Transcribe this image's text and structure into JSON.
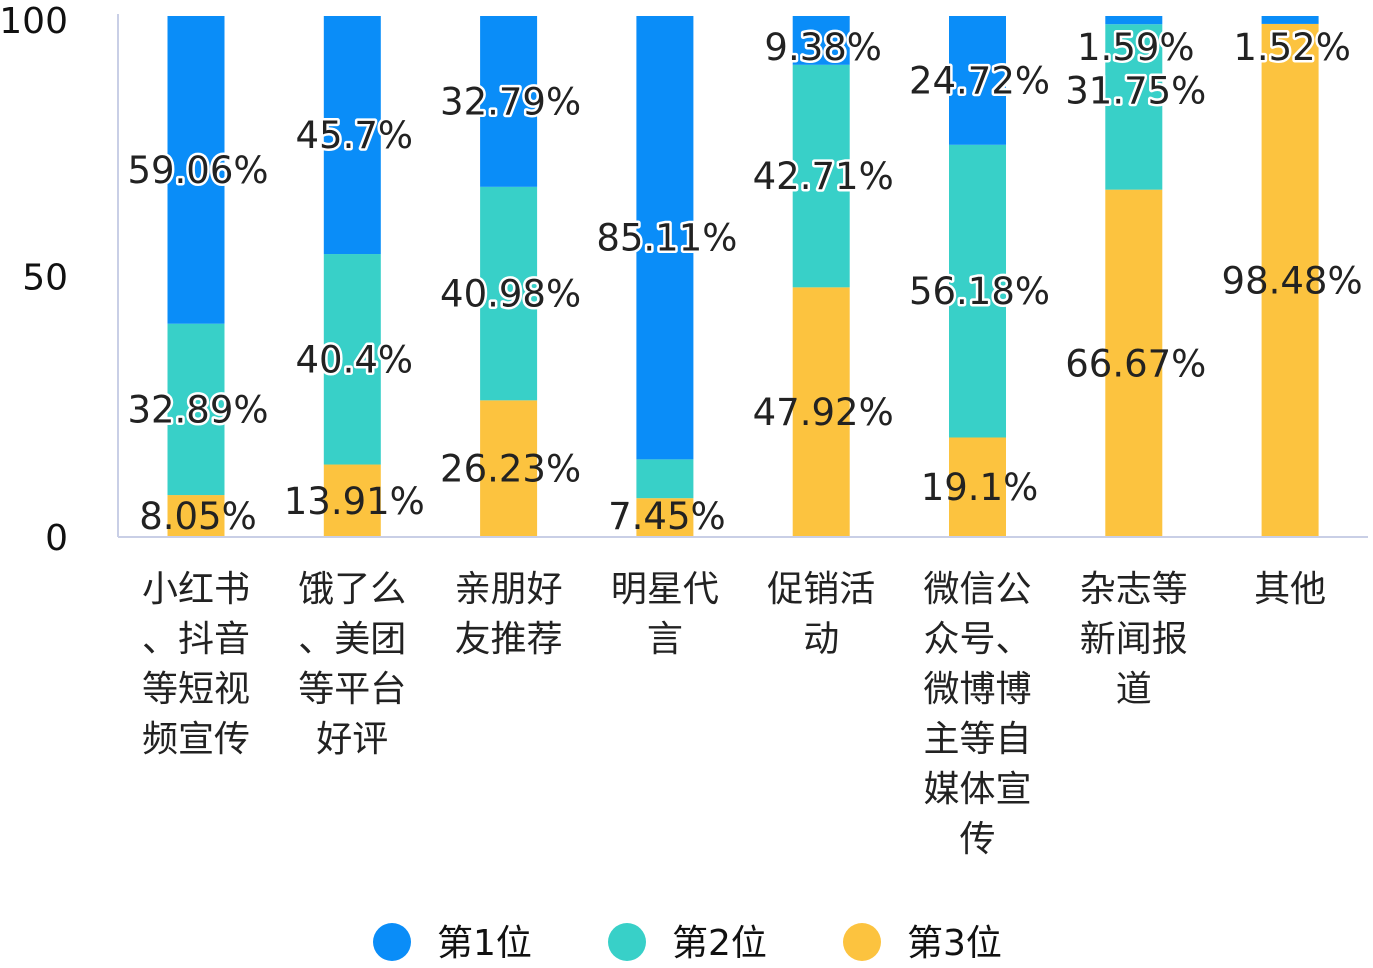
{
  "chart_data": {
    "type": "bar",
    "stacked": true,
    "ylim": [
      0,
      100
    ],
    "yticks": [
      "0",
      "50",
      "100"
    ],
    "legend_position": "bottom",
    "categories": [
      [
        "小红书",
        "、抖音",
        "等短视",
        "频宣传"
      ],
      [
        "饿了么",
        "、美团",
        "等平台",
        "好评"
      ],
      [
        "亲朋好",
        "友推荐"
      ],
      [
        "明星代",
        "言"
      ],
      [
        "促销活",
        "动"
      ],
      [
        "微信公",
        "众号、",
        "微博博",
        "主等自",
        "媒体宣",
        "传"
      ],
      [
        "杂志等",
        "新闻报",
        "道"
      ],
      [
        "其他"
      ]
    ],
    "series": [
      {
        "name": "第3位",
        "color": "#FCC33F",
        "values": [
          8.05,
          13.91,
          26.23,
          7.45,
          47.92,
          19.1,
          66.67,
          98.48
        ],
        "labels": [
          "8.05%",
          "13.91%",
          "26.23%",
          "7.45%",
          "47.92%",
          "19.1%",
          "66.67%",
          "98.48%"
        ]
      },
      {
        "name": "第2位",
        "color": "#38D0C8",
        "values": [
          32.89,
          40.4,
          40.98,
          7.45,
          42.71,
          56.18,
          31.75,
          0
        ],
        "labels": [
          "32.89%",
          "40.4%",
          "40.98%",
          "",
          "42.71%",
          "56.18%",
          "31.75%",
          ""
        ]
      },
      {
        "name": "第1位",
        "color": "#0A8DF8",
        "values": [
          59.06,
          45.7,
          32.79,
          85.11,
          9.38,
          24.72,
          1.59,
          1.52
        ],
        "labels": [
          "59.06%",
          "45.7%",
          "32.79%",
          "85.11%",
          "9.38%",
          "24.72%",
          "1.59%",
          "1.52%"
        ]
      }
    ],
    "legend": [
      {
        "name": "第1位",
        "color": "#0A8DF8"
      },
      {
        "name": "第2位",
        "color": "#38D0C8"
      },
      {
        "name": "第3位",
        "color": "#FCC33F"
      }
    ]
  }
}
